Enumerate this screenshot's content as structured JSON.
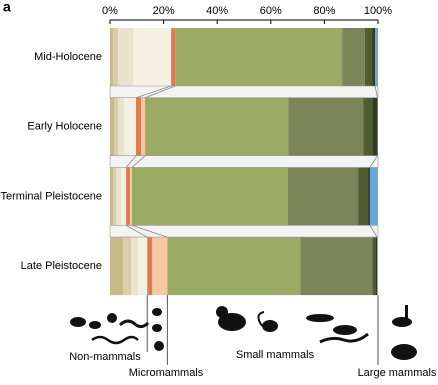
{
  "chart_data": {
    "type": "stacked-bar-horizontal",
    "panel_label": "a",
    "categories": [
      "Mid-Holocene",
      "Early Holocene",
      "Terminal Pleistocene",
      "Late Pleistocene"
    ],
    "series": [
      {
        "color": "#c8b98a",
        "values": [
          1.1,
          1.5,
          1.1,
          4.9
        ]
      },
      {
        "color": "#d9cea9",
        "values": [
          1.9,
          1.5,
          1.1,
          3.0
        ]
      },
      {
        "color": "#e9e2cc",
        "values": [
          5.6,
          2.2,
          1.9,
          2.6
        ]
      },
      {
        "color": "#f4f0e2",
        "values": [
          14.2,
          4.5,
          1.9,
          3.4
        ]
      },
      {
        "color": "#e07a50",
        "values": [
          1.5,
          1.9,
          1.5,
          1.9
        ]
      },
      {
        "color": "#f7c9a2",
        "values": [
          0,
          1.5,
          0.7,
          5.6
        ]
      },
      {
        "color": "#9bab65",
        "values": [
          62.3,
          53.4,
          58.2,
          49.6
        ]
      },
      {
        "color": "#7b8558",
        "values": [
          8.5,
          28,
          26.2,
          26.9
        ]
      },
      {
        "color": "#4f5b31",
        "values": [
          2.7,
          3.4,
          3.7,
          1.1
        ]
      },
      {
        "color": "#2f3a20",
        "values": [
          1.1,
          1.9,
          0.7,
          0.7
        ]
      },
      {
        "color": "#6aa8d8",
        "values": [
          1.1,
          0.2,
          3.0,
          0.3
        ]
      }
    ],
    "xlim": [
      0,
      100
    ],
    "xticks": [
      {
        "value": 0,
        "label": "0%"
      },
      {
        "value": 20,
        "label": "20%"
      },
      {
        "value": 40,
        "label": "40%"
      },
      {
        "value": 60,
        "label": "60%"
      },
      {
        "value": 80,
        "label": "80%"
      },
      {
        "value": 100,
        "label": "100%"
      }
    ],
    "group_labels": [
      "Non-mammals",
      "Micromammals",
      "Small mammals",
      "Large mammals"
    ]
  }
}
